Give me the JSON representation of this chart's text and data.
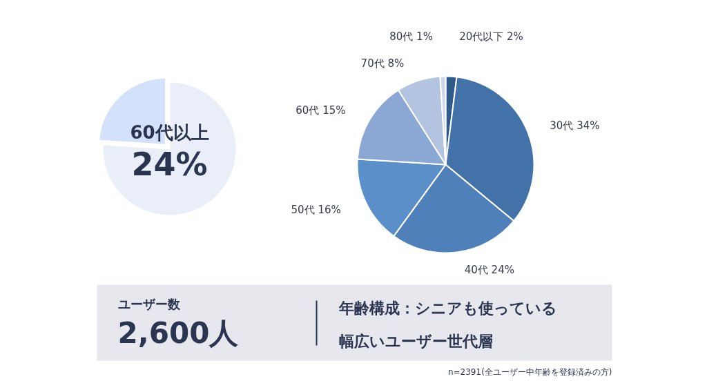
{
  "chart_data": [
    {
      "type": "pie",
      "categories": [
        "60代以上",
        null
      ],
      "values": [
        24,
        76
      ],
      "colors": [
        "#d4e1fa",
        "#e9eef9"
      ],
      "value_labels": [
        "24%",
        null
      ]
    },
    {
      "type": "pie",
      "categories": [
        "20代以下",
        "30代",
        "40代",
        "50代",
        "60代",
        "70代",
        "80代"
      ],
      "values": [
        2,
        34,
        24,
        16,
        15,
        8,
        1
      ],
      "colors": [
        "#2f5a8c",
        "#4272a8",
        "#4f80ba",
        "#5b8fca",
        "#8aa8d3",
        "#b3c4e0",
        "#cdd8ec"
      ],
      "value_labels": [
        "2%",
        "34%",
        "24%",
        "16%",
        "15%",
        "8%",
        "1%"
      ],
      "annotations": [
        "ユーザー数",
        "2,600人",
        "年齢構成：シニアも使っている",
        "幅広いユーザー世代層",
        "n=2391(全ユーザー中年齢を登録済みの方)"
      ]
    }
  ]
}
